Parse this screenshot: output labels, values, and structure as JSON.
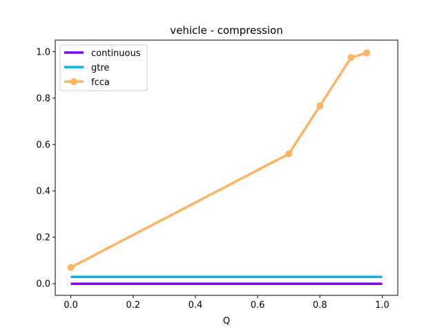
{
  "chart_data": {
    "type": "line",
    "title": "vehicle - compression",
    "xlabel": "Q",
    "ylabel": "",
    "xlim": [
      -0.05,
      1.05
    ],
    "ylim": [
      -0.05,
      1.05
    ],
    "xticks": [
      0.0,
      0.2,
      0.4,
      0.6,
      0.8,
      1.0
    ],
    "xtick_labels": [
      "0.0",
      "0.2",
      "0.4",
      "0.6",
      "0.8",
      "1.0"
    ],
    "yticks": [
      0.0,
      0.2,
      0.4,
      0.6,
      0.8,
      1.0
    ],
    "ytick_labels": [
      "0.0",
      "0.2",
      "0.4",
      "0.6",
      "0.8",
      "1.0"
    ],
    "grid": false,
    "legend_position": "top-left",
    "series": [
      {
        "name": "continuous",
        "color": "#8000ff",
        "markers": false,
        "x": [
          0.0,
          1.0
        ],
        "y": [
          0.0,
          0.0
        ]
      },
      {
        "name": "gtre",
        "color": "#00b5eb",
        "markers": false,
        "x": [
          0.0,
          1.0
        ],
        "y": [
          0.03,
          0.03
        ]
      },
      {
        "name": "fcca",
        "color": "#ffb360",
        "markers": true,
        "x": [
          0.0,
          0.7,
          0.8,
          0.9,
          0.95
        ],
        "y": [
          0.07,
          0.56,
          0.767,
          0.975,
          0.995
        ]
      }
    ]
  }
}
